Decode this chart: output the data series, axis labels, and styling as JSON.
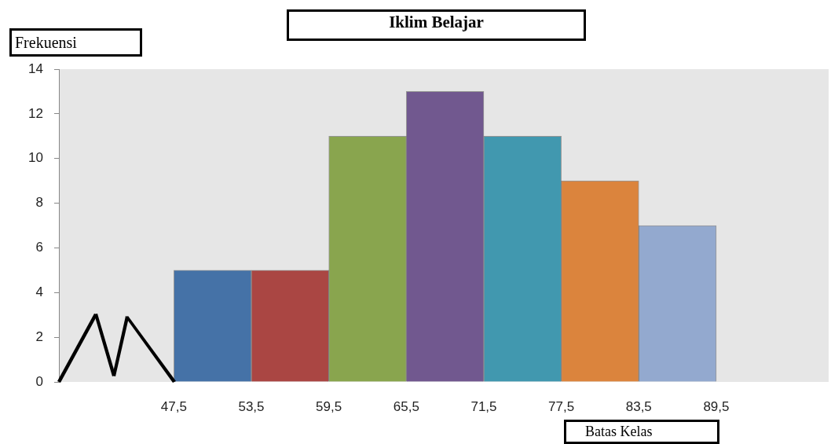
{
  "chart_data": {
    "type": "histogram",
    "title": "Iklim Belajar",
    "xlabel": "Batas Kelas",
    "ylabel": "Frekuensi",
    "bins": [
      47.5,
      53.5,
      59.5,
      65.5,
      71.5,
      77.5,
      83.5,
      89.5
    ],
    "values": [
      5,
      5,
      11,
      13,
      11,
      9,
      7
    ],
    "colors": [
      "#4572a7",
      "#aa4643",
      "#89a54e",
      "#71588f",
      "#4198af",
      "#db843d",
      "#93a9cf"
    ],
    "xlim": [
      38.6,
      98.2
    ],
    "xticks": [
      {
        "value": 47.5,
        "label": "47,5"
      },
      {
        "value": 53.5,
        "label": "53,5"
      },
      {
        "value": 59.5,
        "label": "59,5"
      },
      {
        "value": 65.5,
        "label": "65,5"
      },
      {
        "value": 71.5,
        "label": "71,5"
      },
      {
        "value": 77.5,
        "label": "77,5"
      },
      {
        "value": 83.5,
        "label": "83,5"
      },
      {
        "value": 89.5,
        "label": "89,5"
      }
    ],
    "ylim": [
      0,
      14
    ],
    "yticks": [
      0,
      2,
      4,
      6,
      8,
      10,
      12,
      14
    ],
    "grid": false
  }
}
